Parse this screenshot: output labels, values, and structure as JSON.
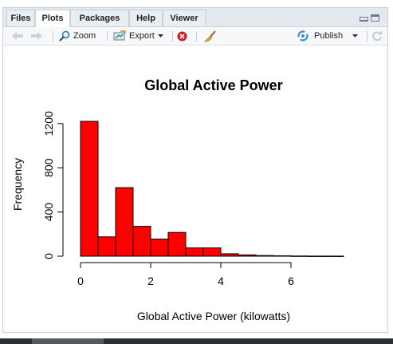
{
  "tabs": [
    {
      "label": "Files"
    },
    {
      "label": "Plots"
    },
    {
      "label": "Packages"
    },
    {
      "label": "Help"
    },
    {
      "label": "Viewer"
    }
  ],
  "toolbar": {
    "zoom_label": "Zoom",
    "export_label": "Export",
    "publish_label": "Publish"
  },
  "colors": {
    "bar_fill": "#ff0000",
    "publish_icon": "#3f8fcf",
    "remove_icon": "#d11c1c",
    "broom_icon": "#c98a2b"
  },
  "chart_data": {
    "type": "bar",
    "title": "Global Active Power",
    "xlabel": "Global Active Power (kilowatts)",
    "ylabel": "Frequency",
    "xlim": [
      0,
      8
    ],
    "ylim": [
      0,
      1300
    ],
    "xticks": [
      0,
      2,
      4,
      6
    ],
    "yticks": [
      0,
      400,
      800,
      1200
    ],
    "bins": [
      {
        "x0": 0.0,
        "x1": 0.5,
        "y": 1220
      },
      {
        "x0": 0.5,
        "x1": 1.0,
        "y": 175
      },
      {
        "x0": 1.0,
        "x1": 1.5,
        "y": 620
      },
      {
        "x0": 1.5,
        "x1": 2.0,
        "y": 270
      },
      {
        "x0": 2.0,
        "x1": 2.5,
        "y": 155
      },
      {
        "x0": 2.5,
        "x1": 3.0,
        "y": 215
      },
      {
        "x0": 3.0,
        "x1": 3.5,
        "y": 75
      },
      {
        "x0": 3.5,
        "x1": 4.0,
        "y": 75
      },
      {
        "x0": 4.0,
        "x1": 4.5,
        "y": 22
      },
      {
        "x0": 4.5,
        "x1": 5.0,
        "y": 12
      },
      {
        "x0": 5.0,
        "x1": 5.5,
        "y": 6
      },
      {
        "x0": 5.5,
        "x1": 6.0,
        "y": 4
      },
      {
        "x0": 6.0,
        "x1": 6.5,
        "y": 2
      },
      {
        "x0": 6.5,
        "x1": 7.0,
        "y": 1
      },
      {
        "x0": 7.0,
        "x1": 7.5,
        "y": 1
      }
    ]
  }
}
